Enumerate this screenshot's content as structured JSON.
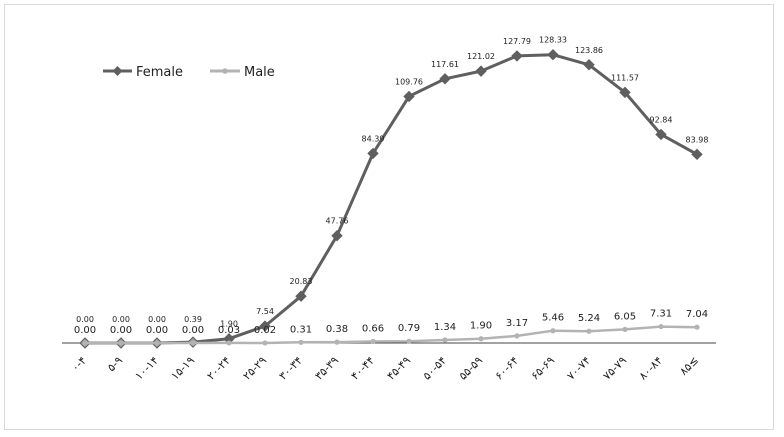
{
  "chart_data": {
    "type": "line",
    "categories": [
      "۰-۴",
      "۵-۹",
      "۱۰-۱۴",
      "۱۵-۱۹",
      "۲۰-۲۴",
      "۲۵-۲۹",
      "۳۰-۳۴",
      "۳۵-۳۹",
      "۴۰-۴۴",
      "۴۵-۴۹",
      "۵۰-۵۴",
      "۵۵-۵۹",
      "۶۰-۶۴",
      "۶۵-۶۹",
      "۷۰-۷۴",
      "۷۵-۷۹",
      "۸۰-۸۴",
      "۸۵≤"
    ],
    "series": [
      {
        "name": "Female",
        "values": [
          0.0,
          0.0,
          0.0,
          0.39,
          1.9,
          7.54,
          20.83,
          47.76,
          84.39,
          109.76,
          117.61,
          121.02,
          127.79,
          128.33,
          123.86,
          111.57,
          92.84,
          83.98
        ],
        "labels": [
          "0.00",
          "0.00",
          "0.00",
          "0.39",
          "1.90",
          "7.54",
          "20.83",
          "47.76",
          "84.39",
          "109.76",
          "117.61",
          "121.02",
          "127.79",
          "128.33",
          "123.86",
          "111.57",
          "92.84",
          "83.98"
        ],
        "color": "#5f5f5f",
        "marker": "diamond"
      },
      {
        "name": "Male",
        "values": [
          0.0,
          0.0,
          0.0,
          0.0,
          0.03,
          0.02,
          0.31,
          0.38,
          0.66,
          0.79,
          1.34,
          1.9,
          3.17,
          5.46,
          5.24,
          6.05,
          7.31,
          7.04
        ],
        "labels": [
          "0.00",
          "0.00",
          "0.00",
          "0.00",
          "0.03",
          "0.02",
          "0.31",
          "0.38",
          "0.66",
          "0.79",
          "1.34",
          "1.90",
          "3.17",
          "5.46",
          "5.24",
          "6.05",
          "7.31",
          "7.04"
        ],
        "color": "#b3b3b3",
        "marker": "circle"
      }
    ],
    "ylim": [
      0,
      138
    ],
    "grid": false,
    "legend": "top-left"
  }
}
